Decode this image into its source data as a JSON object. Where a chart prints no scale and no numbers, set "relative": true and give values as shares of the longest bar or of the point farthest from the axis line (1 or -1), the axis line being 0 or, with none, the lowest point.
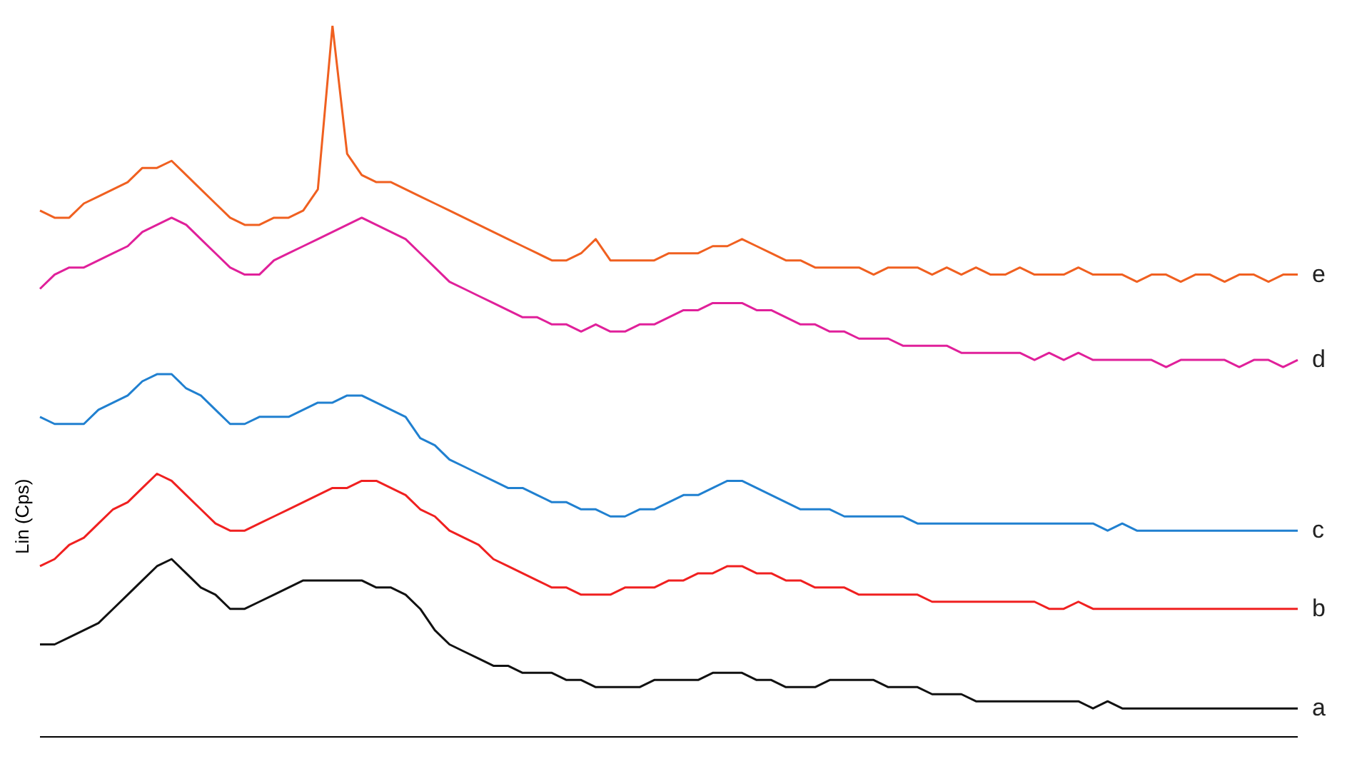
{
  "chart_data": {
    "type": "line",
    "relative": true,
    "ylabel": "Lin (Cps)",
    "grid": false,
    "legend": false,
    "marker": "none",
    "categories": [
      null,
      null,
      null,
      null,
      null,
      null,
      null,
      null,
      null,
      null,
      null,
      null,
      null,
      null,
      null,
      null,
      null,
      null,
      null,
      null,
      null,
      null,
      null,
      null,
      null,
      null,
      null,
      null,
      null,
      null,
      null,
      null,
      null,
      null,
      null,
      null,
      null,
      null,
      null,
      null,
      null,
      null,
      null,
      null,
      null,
      null,
      null,
      null,
      null,
      null,
      null,
      null,
      null,
      null,
      null,
      null,
      null,
      null,
      null,
      null,
      null,
      null,
      null,
      null,
      null,
      null,
      null,
      null,
      null,
      null,
      null,
      null,
      null,
      null,
      null,
      null,
      null,
      null,
      null,
      null,
      null,
      null,
      null,
      null,
      null,
      null,
      null
    ],
    "series": [
      {
        "name": "a",
        "color": "#111111",
        "values": [
          0.13,
          0.13,
          0.14,
          0.15,
          0.16,
          0.18,
          0.2,
          0.22,
          0.24,
          0.25,
          0.23,
          0.21,
          0.2,
          0.18,
          0.18,
          0.19,
          0.2,
          0.21,
          0.22,
          0.22,
          0.22,
          0.22,
          0.22,
          0.21,
          0.21,
          0.2,
          0.18,
          0.15,
          0.13,
          0.12,
          0.11,
          0.1,
          0.1,
          0.09,
          0.09,
          0.09,
          0.08,
          0.08,
          0.07,
          0.07,
          0.07,
          0.07,
          0.08,
          0.08,
          0.08,
          0.08,
          0.09,
          0.09,
          0.09,
          0.08,
          0.08,
          0.07,
          0.07,
          0.07,
          0.08,
          0.08,
          0.08,
          0.08,
          0.07,
          0.07,
          0.07,
          0.06,
          0.06,
          0.06,
          0.05,
          0.05,
          0.05,
          0.05,
          0.05,
          0.05,
          0.05,
          0.05,
          0.04,
          0.05,
          0.04,
          0.04,
          0.04,
          0.04,
          0.04,
          0.04,
          0.04,
          0.04,
          0.04,
          0.04,
          0.04,
          0.04,
          0.04
        ]
      },
      {
        "name": "b",
        "color": "#f02020",
        "values": [
          0.24,
          0.25,
          0.27,
          0.28,
          0.3,
          0.32,
          0.33,
          0.35,
          0.37,
          0.36,
          0.34,
          0.32,
          0.3,
          0.29,
          0.29,
          0.3,
          0.31,
          0.32,
          0.33,
          0.34,
          0.35,
          0.35,
          0.36,
          0.36,
          0.35,
          0.34,
          0.32,
          0.31,
          0.29,
          0.28,
          0.27,
          0.25,
          0.24,
          0.23,
          0.22,
          0.21,
          0.21,
          0.2,
          0.2,
          0.2,
          0.21,
          0.21,
          0.21,
          0.22,
          0.22,
          0.23,
          0.23,
          0.24,
          0.24,
          0.23,
          0.23,
          0.22,
          0.22,
          0.21,
          0.21,
          0.21,
          0.2,
          0.2,
          0.2,
          0.2,
          0.2,
          0.19,
          0.19,
          0.19,
          0.19,
          0.19,
          0.19,
          0.19,
          0.19,
          0.18,
          0.18,
          0.19,
          0.18,
          0.18,
          0.18,
          0.18,
          0.18,
          0.18,
          0.18,
          0.18,
          0.18,
          0.18,
          0.18,
          0.18,
          0.18,
          0.18,
          0.18
        ]
      },
      {
        "name": "c",
        "color": "#2080d0",
        "values": [
          0.45,
          0.44,
          0.44,
          0.44,
          0.46,
          0.47,
          0.48,
          0.5,
          0.51,
          0.51,
          0.49,
          0.48,
          0.46,
          0.44,
          0.44,
          0.45,
          0.45,
          0.45,
          0.46,
          0.47,
          0.47,
          0.48,
          0.48,
          0.47,
          0.46,
          0.45,
          0.42,
          0.41,
          0.39,
          0.38,
          0.37,
          0.36,
          0.35,
          0.35,
          0.34,
          0.33,
          0.33,
          0.32,
          0.32,
          0.31,
          0.31,
          0.32,
          0.32,
          0.33,
          0.34,
          0.34,
          0.35,
          0.36,
          0.36,
          0.35,
          0.34,
          0.33,
          0.32,
          0.32,
          0.32,
          0.31,
          0.31,
          0.31,
          0.31,
          0.31,
          0.3,
          0.3,
          0.3,
          0.3,
          0.3,
          0.3,
          0.3,
          0.3,
          0.3,
          0.3,
          0.3,
          0.3,
          0.3,
          0.29,
          0.3,
          0.29,
          0.29,
          0.29,
          0.29,
          0.29,
          0.29,
          0.29,
          0.29,
          0.29,
          0.29,
          0.29,
          0.29
        ]
      },
      {
        "name": "d",
        "color": "#e0209a",
        "values": [
          0.63,
          0.65,
          0.66,
          0.66,
          0.67,
          0.68,
          0.69,
          0.71,
          0.72,
          0.73,
          0.72,
          0.7,
          0.68,
          0.66,
          0.65,
          0.65,
          0.67,
          0.68,
          0.69,
          0.7,
          0.71,
          0.72,
          0.73,
          0.72,
          0.71,
          0.7,
          0.68,
          0.66,
          0.64,
          0.63,
          0.62,
          0.61,
          0.6,
          0.59,
          0.59,
          0.58,
          0.58,
          0.57,
          0.58,
          0.57,
          0.57,
          0.58,
          0.58,
          0.59,
          0.6,
          0.6,
          0.61,
          0.61,
          0.61,
          0.6,
          0.6,
          0.59,
          0.58,
          0.58,
          0.57,
          0.57,
          0.56,
          0.56,
          0.56,
          0.55,
          0.55,
          0.55,
          0.55,
          0.54,
          0.54,
          0.54,
          0.54,
          0.54,
          0.53,
          0.54,
          0.53,
          0.54,
          0.53,
          0.53,
          0.53,
          0.53,
          0.53,
          0.52,
          0.53,
          0.53,
          0.53,
          0.53,
          0.52,
          0.53,
          0.53,
          0.52,
          0.53
        ]
      },
      {
        "name": "e",
        "color": "#f06020",
        "values": [
          0.74,
          0.73,
          0.73,
          0.75,
          0.76,
          0.77,
          0.78,
          0.8,
          0.8,
          0.81,
          0.79,
          0.77,
          0.75,
          0.73,
          0.72,
          0.72,
          0.73,
          0.73,
          0.74,
          0.77,
          1.0,
          0.82,
          0.79,
          0.78,
          0.78,
          0.77,
          0.76,
          0.75,
          0.74,
          0.73,
          0.72,
          0.71,
          0.7,
          0.69,
          0.68,
          0.67,
          0.67,
          0.68,
          0.7,
          0.67,
          0.67,
          0.67,
          0.67,
          0.68,
          0.68,
          0.68,
          0.69,
          0.69,
          0.7,
          0.69,
          0.68,
          0.67,
          0.67,
          0.66,
          0.66,
          0.66,
          0.66,
          0.65,
          0.66,
          0.66,
          0.66,
          0.65,
          0.66,
          0.65,
          0.66,
          0.65,
          0.65,
          0.66,
          0.65,
          0.65,
          0.65,
          0.66,
          0.65,
          0.65,
          0.65,
          0.64,
          0.65,
          0.65,
          0.64,
          0.65,
          0.65,
          0.64,
          0.65,
          0.65,
          0.64,
          0.65,
          0.65
        ]
      }
    ]
  }
}
